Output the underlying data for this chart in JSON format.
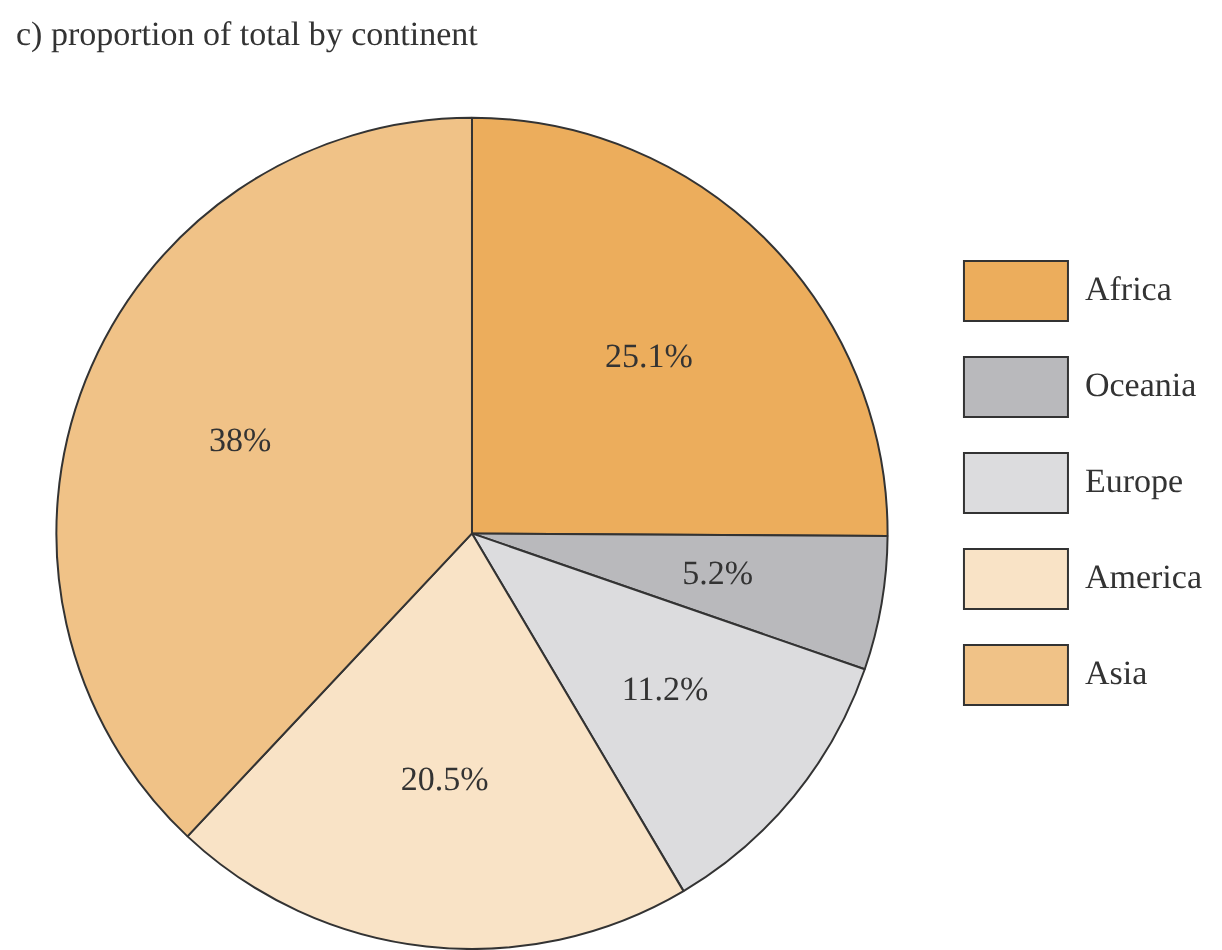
{
  "chart_data": {
    "type": "pie",
    "title": "c) proportion of total by continent",
    "categories": [
      "Africa",
      "Oceania",
      "Europe",
      "America",
      "Asia"
    ],
    "values": [
      25.1,
      5.2,
      11.2,
      20.5,
      38
    ],
    "colors": [
      "#ecad5c",
      "#b9b9bc",
      "#dcdcde",
      "#f9e3c6",
      "#f0c287"
    ],
    "value_labels": [
      "25.1%",
      "5.2%",
      "11.2%",
      "20.5%",
      "38%"
    ],
    "legend": "right"
  }
}
